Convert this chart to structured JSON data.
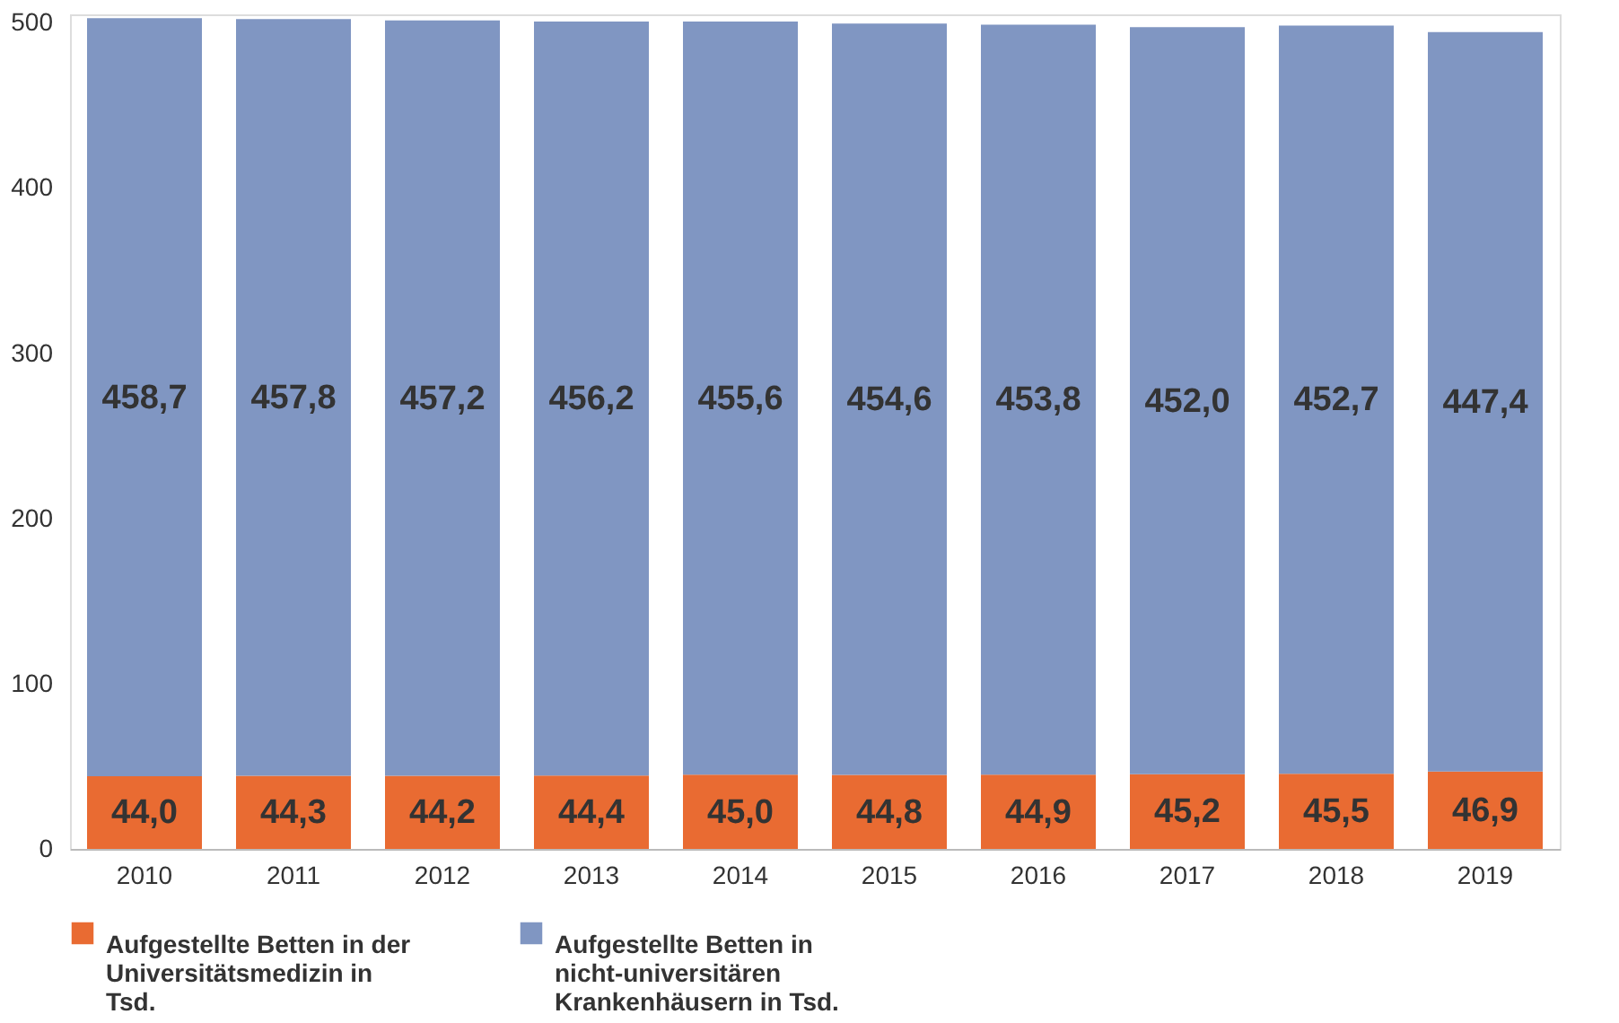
{
  "chart_data": {
    "type": "bar",
    "stacked": true,
    "categories": [
      "2010",
      "2011",
      "2012",
      "2013",
      "2014",
      "2015",
      "2016",
      "2017",
      "2018",
      "2019"
    ],
    "series": [
      {
        "name": "Aufgestellte Betten in der Universitätsmedizin in Tsd.",
        "color": "#e96b32",
        "values": [
          44.0,
          44.3,
          44.2,
          44.4,
          45.0,
          44.8,
          44.9,
          45.2,
          45.5,
          46.9
        ],
        "value_labels": [
          "44,0",
          "44,3",
          "44,2",
          "44,4",
          "45,0",
          "44,8",
          "44,9",
          "45,2",
          "45,5",
          "46,9"
        ]
      },
      {
        "name": "Aufgestellte Betten in nicht-universitären Krankenhäusern in Tsd.",
        "color": "#8096c2",
        "values": [
          458.7,
          457.8,
          457.2,
          456.2,
          455.6,
          454.6,
          453.8,
          452.0,
          452.7,
          447.4
        ],
        "value_labels": [
          "458,7",
          "457,8",
          "457,2",
          "456,2",
          "455,6",
          "454,6",
          "453,8",
          "452,0",
          "452,7",
          "447,4"
        ]
      }
    ],
    "ylim": [
      0,
      505
    ],
    "yticks": [
      0,
      100,
      200,
      300,
      400,
      500
    ],
    "grid": false,
    "legend": "bottom"
  }
}
